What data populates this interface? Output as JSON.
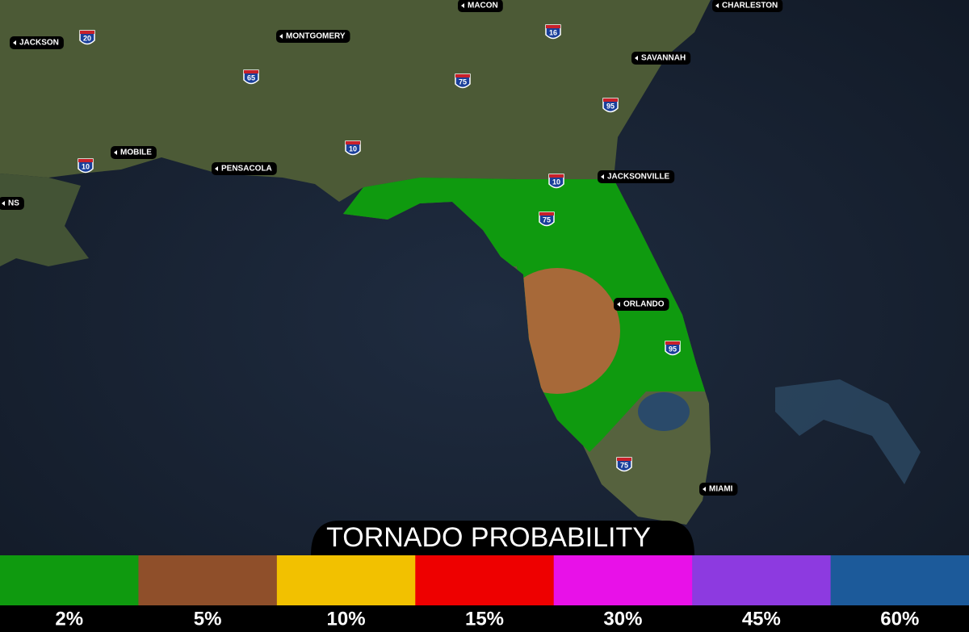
{
  "map": {
    "cities": [
      {
        "name": "JACKSON"
      },
      {
        "name": "MONTGOMERY"
      },
      {
        "name": "MACON"
      },
      {
        "name": "CHARLESTON"
      },
      {
        "name": "SAVANNAH"
      },
      {
        "name": "MOBILE"
      },
      {
        "name": "PENSACOLA"
      },
      {
        "name": "JACKSONVILLE"
      },
      {
        "name": "ORLANDO"
      },
      {
        "name": "MIAMI"
      },
      {
        "name": "NS"
      }
    ],
    "interstates": [
      {
        "number": "20"
      },
      {
        "number": "65"
      },
      {
        "number": "75"
      },
      {
        "number": "16"
      },
      {
        "number": "95"
      },
      {
        "number": "10"
      },
      {
        "number": "10"
      },
      {
        "number": "10"
      },
      {
        "number": "75"
      },
      {
        "number": "95"
      },
      {
        "number": "75"
      }
    ]
  },
  "legend": {
    "title": "TORNADO PROBABILITY",
    "items": [
      {
        "label": "2%",
        "color": "#0f9a0f"
      },
      {
        "label": "5%",
        "color": "#8f4f2a"
      },
      {
        "label": "10%",
        "color": "#f2c100"
      },
      {
        "label": "15%",
        "color": "#ee0000"
      },
      {
        "label": "30%",
        "color": "#e811e8"
      },
      {
        "label": "45%",
        "color": "#8d3ae0"
      },
      {
        "label": "60%",
        "color": "#1c5a9a"
      }
    ]
  }
}
